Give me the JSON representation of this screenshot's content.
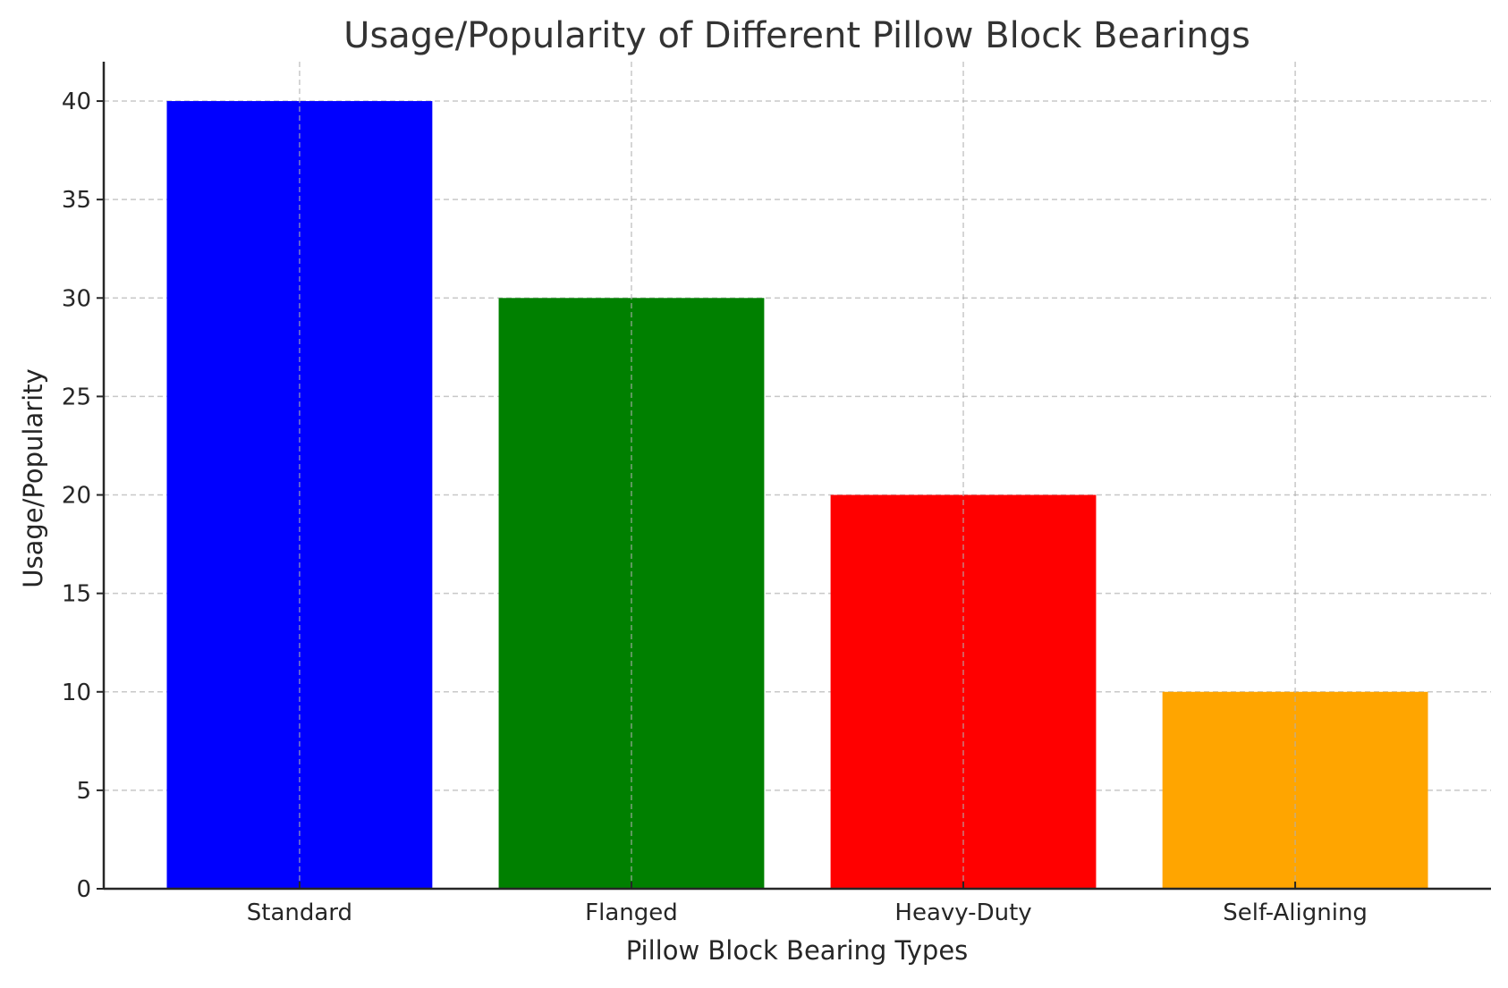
{
  "chart_data": {
    "type": "bar",
    "title": "Usage/Popularity of Different Pillow Block Bearings",
    "xlabel": "Pillow Block Bearing Types",
    "ylabel": "Usage/Popularity",
    "categories": [
      "Standard",
      "Flanged",
      "Heavy-Duty",
      "Self-Aligning"
    ],
    "values": [
      40,
      30,
      20,
      10
    ],
    "colors": [
      "#0000ff",
      "#008000",
      "#ff0000",
      "#ffa500"
    ],
    "ylim": [
      0,
      42
    ],
    "yticks": [
      0,
      5,
      10,
      15,
      20,
      25,
      30,
      35,
      40
    ],
    "grid": true,
    "grid_style": "dashed"
  }
}
